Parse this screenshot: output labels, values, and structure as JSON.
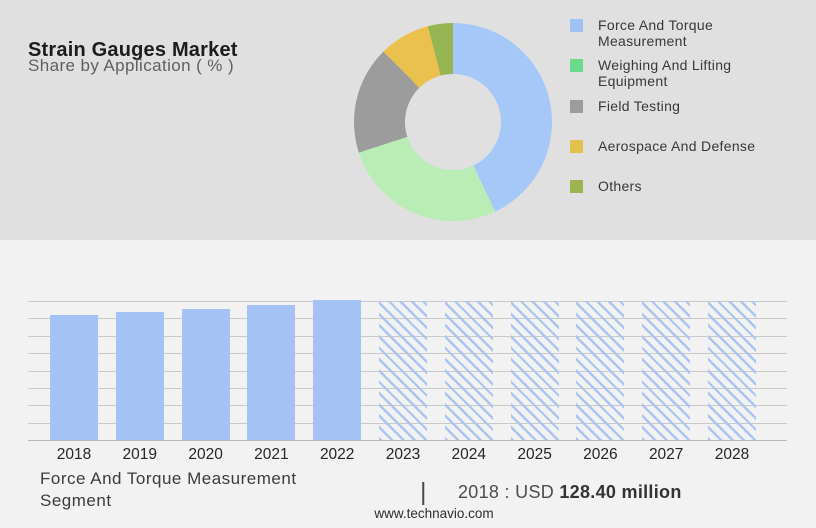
{
  "header": {
    "title": "Strain Gauges Market",
    "subtitle": "Share by Application ( % )"
  },
  "footer": {
    "segment_label": "Force And Torque Measurement Segment",
    "segment_label_lines": [
      "Force And Torque Measurement",
      "Segment"
    ],
    "separator": "|",
    "stat_prefix": "2018 : USD ",
    "stat_value": "128.40 million",
    "website": "www.technavio.com"
  },
  "chart_data": [
    {
      "type": "pie",
      "subtype": "donut",
      "title": "Share by Application ( % )",
      "labels": [
        "Force And Torque Measurement",
        "Weighing And Lifting Equipment",
        "Field Testing",
        "Aerospace And Defense",
        "Others"
      ],
      "values_pct_est": [
        43,
        27,
        17.6,
        8.3,
        4.1
      ],
      "values_estimated": true,
      "start_angle_deg": 0,
      "direction": "clockwise",
      "hole_ratio": 0.48,
      "slice_colors": [
        "#a6c8f8",
        "#b9edb5",
        "#9c9c9c",
        "#eac04e",
        "#97b553"
      ],
      "legend_position": "right",
      "legend_items": [
        {
          "label": "Force And Torque Measurement",
          "lines": [
            "Force And Torque",
            "Measurement"
          ],
          "color": "#9fc2f5"
        },
        {
          "label": "Weighing And Lifting Equipment",
          "lines": [
            "Weighing And Lifting",
            "Equipment"
          ],
          "color": "#69db8c"
        },
        {
          "label": "Field Testing",
          "lines": [
            "Field Testing"
          ],
          "color": "#9c9c9c"
        },
        {
          "label": "Aerospace And Defense",
          "lines": [
            "Aerospace And Defense"
          ],
          "color": "#e4c04d"
        },
        {
          "label": "Others",
          "lines": [
            "Others"
          ],
          "color": "#9cb551"
        }
      ]
    },
    {
      "type": "bar",
      "title": "Force And Torque Measurement Segment",
      "categories": [
        "2018",
        "2019",
        "2020",
        "2021",
        "2022",
        "2023",
        "2024",
        "2025",
        "2026",
        "2027",
        "2028"
      ],
      "values_usd_million_est": [
        128.4,
        131.5,
        134.6,
        138.7,
        143.8,
        142.8,
        142.8,
        142.8,
        142.8,
        142.8,
        142.8
      ],
      "values_estimated_except_2018": true,
      "known_point": {
        "year": "2018",
        "value": "USD 128.40 million"
      },
      "actual_years": [
        "2018",
        "2019",
        "2020",
        "2021",
        "2022"
      ],
      "forecast_years": [
        "2023",
        "2024",
        "2025",
        "2026",
        "2027",
        "2028"
      ],
      "forecast_style": "diagonal-hatch",
      "bar_color": "#a4c2f4",
      "xlabel": "",
      "ylabel": "",
      "ylim": [
        0,
        160
      ],
      "y_axis_labels_shown": false,
      "grid": true,
      "gridline_count": 9,
      "legend_position": "none"
    }
  ]
}
